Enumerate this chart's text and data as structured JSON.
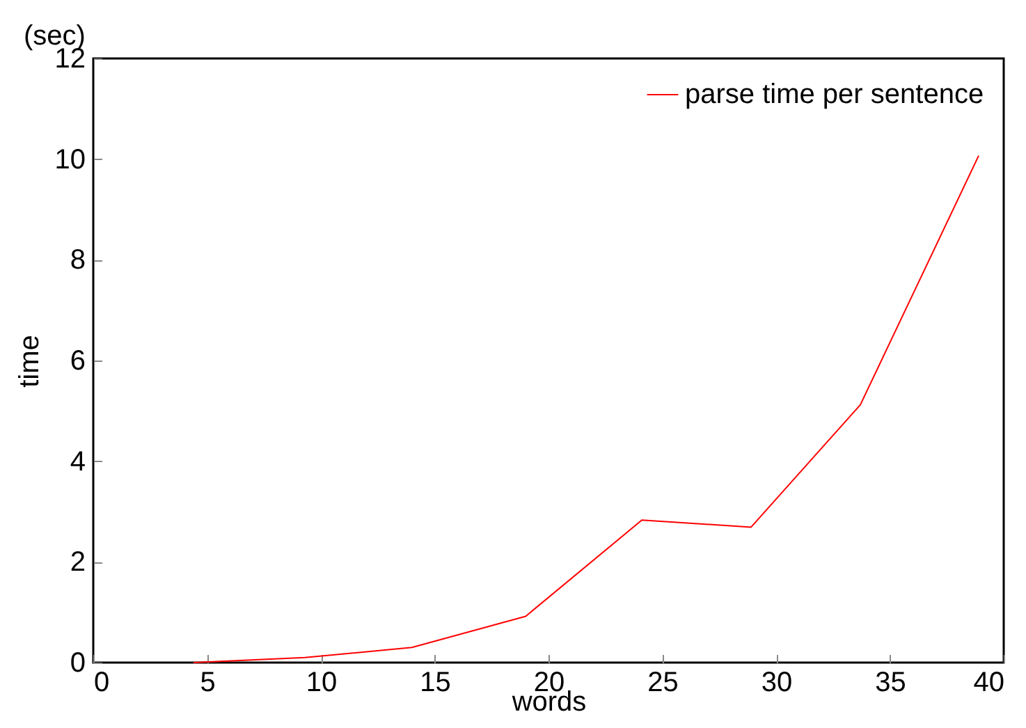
{
  "chart_data": {
    "type": "line",
    "xlabel": "words",
    "ylabel": "time",
    "annotations": [
      "(sec)"
    ],
    "x": [
      4.4,
      9.3,
      14,
      19,
      24.1,
      28.9,
      33.7,
      38.9
    ],
    "series": [
      {
        "name": "parse time per sentence",
        "color": "#ff0000",
        "values": [
          0,
          0.1,
          0.3,
          0.92,
          2.83,
          2.69,
          5.12,
          10.07
        ]
      }
    ],
    "xlim": [
      0,
      40
    ],
    "xticks": [
      0,
      5,
      10,
      15,
      20,
      25,
      30,
      35,
      40
    ],
    "ylim": [
      0,
      12
    ],
    "yticks": [
      0,
      2,
      4,
      6,
      8,
      10,
      12
    ],
    "grid": false,
    "legend": "top right",
    "marker": "none",
    "line_style": "solid"
  }
}
